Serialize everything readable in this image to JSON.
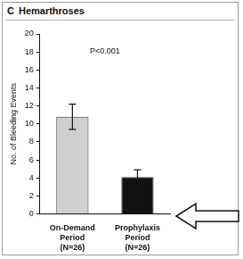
{
  "chart_data": {
    "type": "bar",
    "panel": "C",
    "title": "Hemarthroses",
    "annotation": "P<0.001",
    "y_label": "No. of Bleeding Events",
    "categories": [
      [
        "On-Demand",
        "Period",
        "(N=26)"
      ],
      [
        "Prophylaxis",
        "Period",
        "(N=26)"
      ]
    ],
    "values": [
      10.8,
      4.1
    ],
    "errors": [
      1.4,
      0.8
    ],
    "colors": [
      "#cfcfcf",
      "#111111"
    ],
    "ylim": [
      0,
      20
    ],
    "yticks": [
      0,
      2,
      4,
      6,
      8,
      10,
      12,
      14,
      16,
      18,
      20
    ],
    "grid": false
  }
}
